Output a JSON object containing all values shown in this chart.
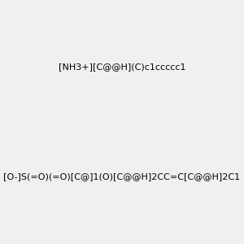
{
  "molecule1_smiles": "[NH3+][C@@H](C)c1ccccc1",
  "molecule2_smiles": "[O-]S(=O)(=O)[C@]1(O)[C@@H]2CC=C[C@@H]2C1",
  "background_color": "#f0f0f0",
  "figsize": [
    3.0,
    3.0
  ],
  "dpi": 100
}
